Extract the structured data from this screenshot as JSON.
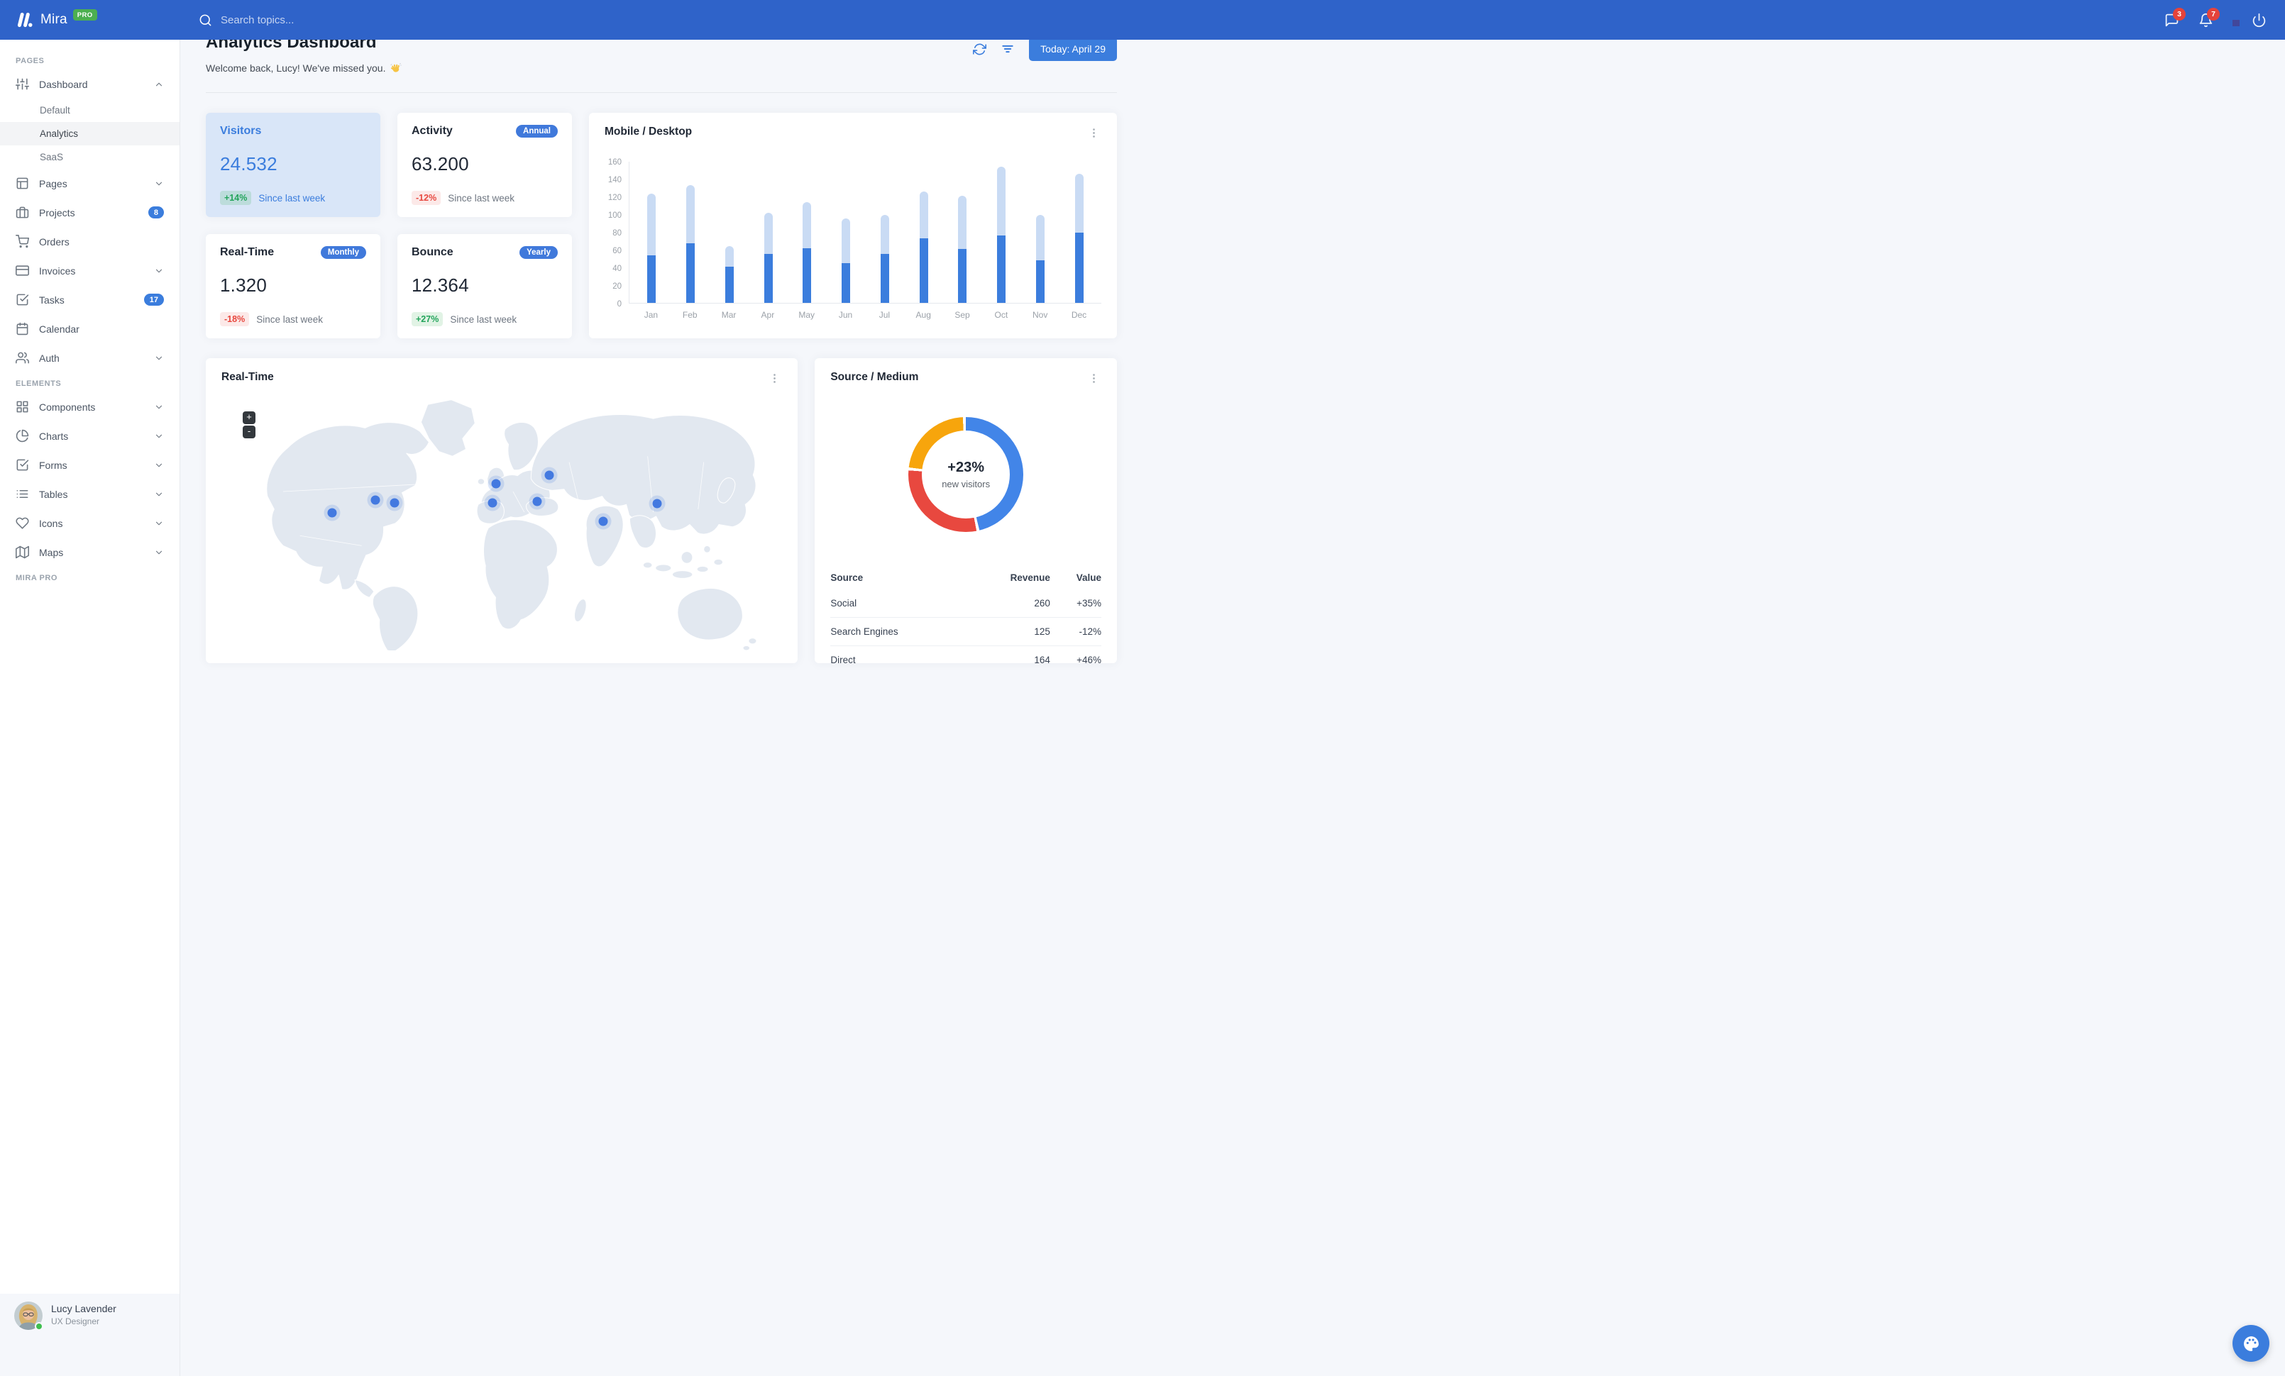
{
  "navbar": {
    "brand": "Mira",
    "brand_badge": "PRO",
    "search_placeholder": "Search topics...",
    "messages_count": "3",
    "notifications_count": "7"
  },
  "sidebar": {
    "sections": [
      {
        "label": "PAGES",
        "items": [
          {
            "icon": "sliders",
            "label": "Dashboard",
            "chevron": "up",
            "children": [
              {
                "label": "Default",
                "active": false
              },
              {
                "label": "Analytics",
                "active": true
              },
              {
                "label": "SaaS",
                "active": false
              }
            ]
          },
          {
            "icon": "layout",
            "label": "Pages",
            "chevron": "down"
          },
          {
            "icon": "briefcase",
            "label": "Projects",
            "badge": "8"
          },
          {
            "icon": "cart",
            "label": "Orders"
          },
          {
            "icon": "credit-card",
            "label": "Invoices",
            "chevron": "down"
          },
          {
            "icon": "check-square",
            "label": "Tasks",
            "badge": "17"
          },
          {
            "icon": "calendar",
            "label": "Calendar"
          },
          {
            "icon": "users",
            "label": "Auth",
            "chevron": "down"
          }
        ]
      },
      {
        "label": "ELEMENTS",
        "items": [
          {
            "icon": "grid",
            "label": "Components",
            "chevron": "down"
          },
          {
            "icon": "pie-chart",
            "label": "Charts",
            "chevron": "down"
          },
          {
            "icon": "check-square",
            "label": "Forms",
            "chevron": "down"
          },
          {
            "icon": "list",
            "label": "Tables",
            "chevron": "down"
          },
          {
            "icon": "heart",
            "label": "Icons",
            "chevron": "down"
          },
          {
            "icon": "map",
            "label": "Maps",
            "chevron": "down"
          }
        ]
      },
      {
        "label": "MIRA PRO",
        "items": []
      }
    ],
    "user": {
      "name": "Lucy Lavender",
      "role": "UX Designer"
    }
  },
  "header": {
    "title": "Analytics Dashboard",
    "subtitle": "Welcome back, Lucy! We've missed you.",
    "emoji": "👋",
    "today_button": "Today: April 29"
  },
  "stats": [
    {
      "title": "Visitors",
      "value": "24.532",
      "delta": "+14%",
      "note": "Since last week",
      "variant": "primary"
    },
    {
      "title": "Activity",
      "pill": "Annual",
      "value": "63.200",
      "delta": "-12%",
      "note": "Since last week"
    },
    {
      "title": "Real-Time",
      "pill": "Monthly",
      "value": "1.320",
      "delta": "-18%",
      "note": "Since last week"
    },
    {
      "title": "Bounce",
      "pill": "Yearly",
      "value": "12.364",
      "delta": "+27%",
      "note": "Since last week"
    }
  ],
  "chart_data": [
    {
      "type": "bar",
      "title": "Mobile / Desktop",
      "stacked": true,
      "categories": [
        "Jan",
        "Feb",
        "Mar",
        "Apr",
        "May",
        "Jun",
        "Jul",
        "Aug",
        "Sep",
        "Oct",
        "Nov",
        "Dec"
      ],
      "series": [
        {
          "name": "Mobile",
          "values": [
            54,
            67,
            41,
            55,
            62,
            45,
            55,
            73,
            61,
            76,
            48,
            79
          ]
        },
        {
          "name": "Desktop",
          "values": [
            69,
            66,
            23,
            47,
            52,
            50,
            44,
            53,
            60,
            78,
            51,
            67
          ]
        }
      ],
      "ylim": [
        0,
        160
      ],
      "yticks": [
        0,
        20,
        40,
        60,
        80,
        100,
        120,
        140,
        160
      ],
      "grid": false,
      "colors": {
        "mobile": "#3B7DDD",
        "desktop": "#C9DBF4"
      }
    },
    {
      "type": "donut",
      "title": "Source / Medium",
      "center_value": "+23%",
      "center_label": "new visitors",
      "segments_clockwise_from_top": [
        {
          "label": "Social",
          "value": 260,
          "color": "#4285E8"
        },
        {
          "label": "Direct",
          "value": 164,
          "color": "#E8483F"
        },
        {
          "label": "Search Engines",
          "value": 125,
          "color": "#F7A50C"
        }
      ]
    }
  ],
  "realtime_map": {
    "title": "Real-Time",
    "zoom_in": "+",
    "zoom_out": "-",
    "marker_color": "#4379E0",
    "markers": [
      {
        "x": 19.8,
        "y": 46.9
      },
      {
        "x": 27.4,
        "y": 41.9
      },
      {
        "x": 30.9,
        "y": 43.0
      },
      {
        "x": 49.0,
        "y": 35.7
      },
      {
        "x": 58.4,
        "y": 32.3
      },
      {
        "x": 48.3,
        "y": 43.0
      },
      {
        "x": 56.3,
        "y": 42.4
      },
      {
        "x": 68.1,
        "y": 50.0
      },
      {
        "x": 77.7,
        "y": 43.3
      }
    ]
  },
  "source_medium": {
    "title": "Source / Medium",
    "center_value": "+23%",
    "center_label": "new visitors",
    "columns": [
      "Source",
      "Revenue",
      "Value"
    ],
    "rows": [
      {
        "source": "Social",
        "revenue": "260",
        "value": "+35%"
      },
      {
        "source": "Search Engines",
        "revenue": "125",
        "value": "-12%"
      },
      {
        "source": "Direct",
        "revenue": "164",
        "value": "+46%"
      }
    ]
  },
  "colors": {
    "navbar": "#2F63C9",
    "primary": "#3B7DDD",
    "success": "#23A45B",
    "danger": "#E8483F",
    "warning": "#F7A50C",
    "background": "#F5F7FB"
  }
}
